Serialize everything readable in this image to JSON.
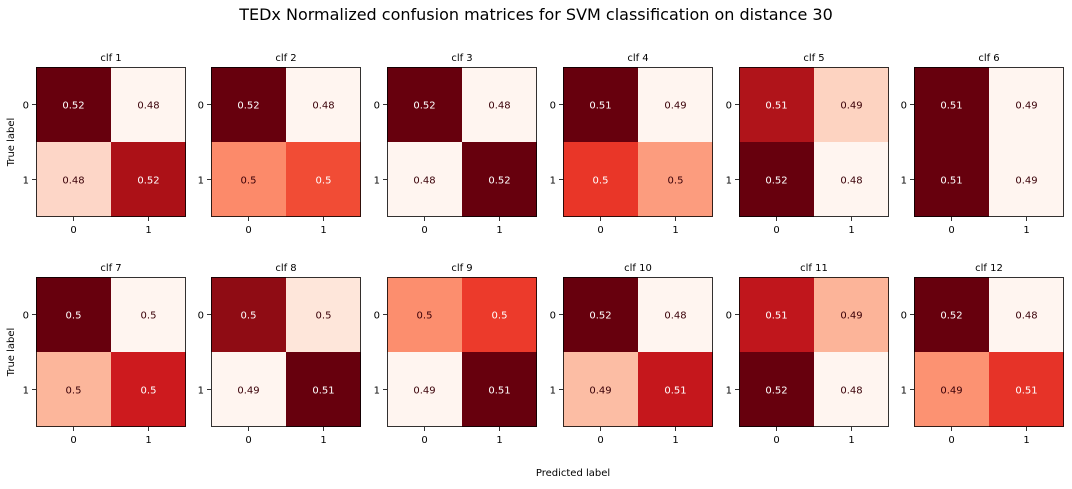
{
  "chart_data": {
    "type": "heatmap",
    "title": "TEDx Normalized confusion matrices for SVM classification on distance 30",
    "xlabel": "Predicted label",
    "ylabel": "True label",
    "tick_labels": [
      "0",
      "1"
    ],
    "colormap": "Reds",
    "vmin_hint": 0.48,
    "vmax_hint": 0.52,
    "panels": [
      {
        "name": "clf 1",
        "matrix": [
          [
            0.52,
            0.48
          ],
          [
            0.48,
            0.52
          ]
        ],
        "labels": [
          [
            "0.52",
            "0.48"
          ],
          [
            "0.48",
            "0.52"
          ]
        ],
        "colors": [
          [
            "#67000d",
            "#fff5f0"
          ],
          [
            "#fdd6c7",
            "#ac1117"
          ]
        ]
      },
      {
        "name": "clf 2",
        "matrix": [
          [
            0.52,
            0.48
          ],
          [
            0.5,
            0.5
          ]
        ],
        "labels": [
          [
            "0.52",
            "0.48"
          ],
          [
            "0.5",
            "0.5"
          ]
        ],
        "colors": [
          [
            "#67000d",
            "#fff5f0"
          ],
          [
            "#fc8a6a",
            "#f14c35"
          ]
        ]
      },
      {
        "name": "clf 3",
        "matrix": [
          [
            0.52,
            0.48
          ],
          [
            0.48,
            0.52
          ]
        ],
        "labels": [
          [
            "0.52",
            "0.48"
          ],
          [
            "0.48",
            "0.52"
          ]
        ],
        "colors": [
          [
            "#67000d",
            "#fff5f0"
          ],
          [
            "#fff5f0",
            "#67000d"
          ]
        ]
      },
      {
        "name": "clf 4",
        "matrix": [
          [
            0.51,
            0.49
          ],
          [
            0.5,
            0.5
          ]
        ],
        "labels": [
          [
            "0.51",
            "0.49"
          ],
          [
            "0.5",
            "0.5"
          ]
        ],
        "colors": [
          [
            "#67000d",
            "#fff5f0"
          ],
          [
            "#e93628",
            "#fc9c7e"
          ]
        ]
      },
      {
        "name": "clf 5",
        "matrix": [
          [
            0.51,
            0.49
          ],
          [
            0.52,
            0.48
          ]
        ],
        "labels": [
          [
            "0.51",
            "0.49"
          ],
          [
            "0.52",
            "0.48"
          ]
        ],
        "colors": [
          [
            "#b0141a",
            "#fdd3c1"
          ],
          [
            "#67000d",
            "#fff5f0"
          ]
        ]
      },
      {
        "name": "clf 6",
        "matrix": [
          [
            0.51,
            0.49
          ],
          [
            0.51,
            0.49
          ]
        ],
        "labels": [
          [
            "0.51",
            "0.49"
          ],
          [
            "0.51",
            "0.49"
          ]
        ],
        "colors": [
          [
            "#67000d",
            "#fff5f0"
          ],
          [
            "#67000d",
            "#fff5f0"
          ]
        ]
      },
      {
        "name": "clf 7",
        "matrix": [
          [
            0.5,
            0.5
          ],
          [
            0.5,
            0.5
          ]
        ],
        "labels": [
          [
            "0.5",
            "0.5"
          ],
          [
            "0.5",
            "0.5"
          ]
        ],
        "colors": [
          [
            "#67000d",
            "#fff5f0"
          ],
          [
            "#fcb69b",
            "#cd1a1e"
          ]
        ]
      },
      {
        "name": "clf 8",
        "matrix": [
          [
            0.5,
            0.5
          ],
          [
            0.49,
            0.51
          ]
        ],
        "labels": [
          [
            "0.5",
            "0.5"
          ],
          [
            "0.49",
            "0.51"
          ]
        ],
        "colors": [
          [
            "#8f0c14",
            "#fee6da"
          ],
          [
            "#fff5f0",
            "#67000d"
          ]
        ]
      },
      {
        "name": "clf 9",
        "matrix": [
          [
            0.5,
            0.5
          ],
          [
            0.49,
            0.51
          ]
        ],
        "labels": [
          [
            "0.5",
            "0.5"
          ],
          [
            "0.49",
            "0.51"
          ]
        ],
        "colors": [
          [
            "#fc8e6e",
            "#ec3a2b"
          ],
          [
            "#fff5f0",
            "#67000d"
          ]
        ]
      },
      {
        "name": "clf 10",
        "matrix": [
          [
            0.52,
            0.48
          ],
          [
            0.49,
            0.51
          ]
        ],
        "labels": [
          [
            "0.52",
            "0.48"
          ],
          [
            "0.49",
            "0.51"
          ]
        ],
        "colors": [
          [
            "#67000d",
            "#fff5f0"
          ],
          [
            "#fcbda4",
            "#c5171c"
          ]
        ]
      },
      {
        "name": "clf 11",
        "matrix": [
          [
            0.51,
            0.49
          ],
          [
            0.52,
            0.48
          ]
        ],
        "labels": [
          [
            "0.51",
            "0.49"
          ],
          [
            "0.52",
            "0.48"
          ]
        ],
        "colors": [
          [
            "#c0161c",
            "#fcb499"
          ],
          [
            "#67000d",
            "#fff5f0"
          ]
        ]
      },
      {
        "name": "clf 12",
        "matrix": [
          [
            0.52,
            0.48
          ],
          [
            0.49,
            0.51
          ]
        ],
        "labels": [
          [
            "0.52",
            "0.48"
          ],
          [
            "0.49",
            "0.51"
          ]
        ],
        "colors": [
          [
            "#67000d",
            "#fff5f0"
          ],
          [
            "#fc9272",
            "#e63328"
          ]
        ]
      }
    ]
  }
}
